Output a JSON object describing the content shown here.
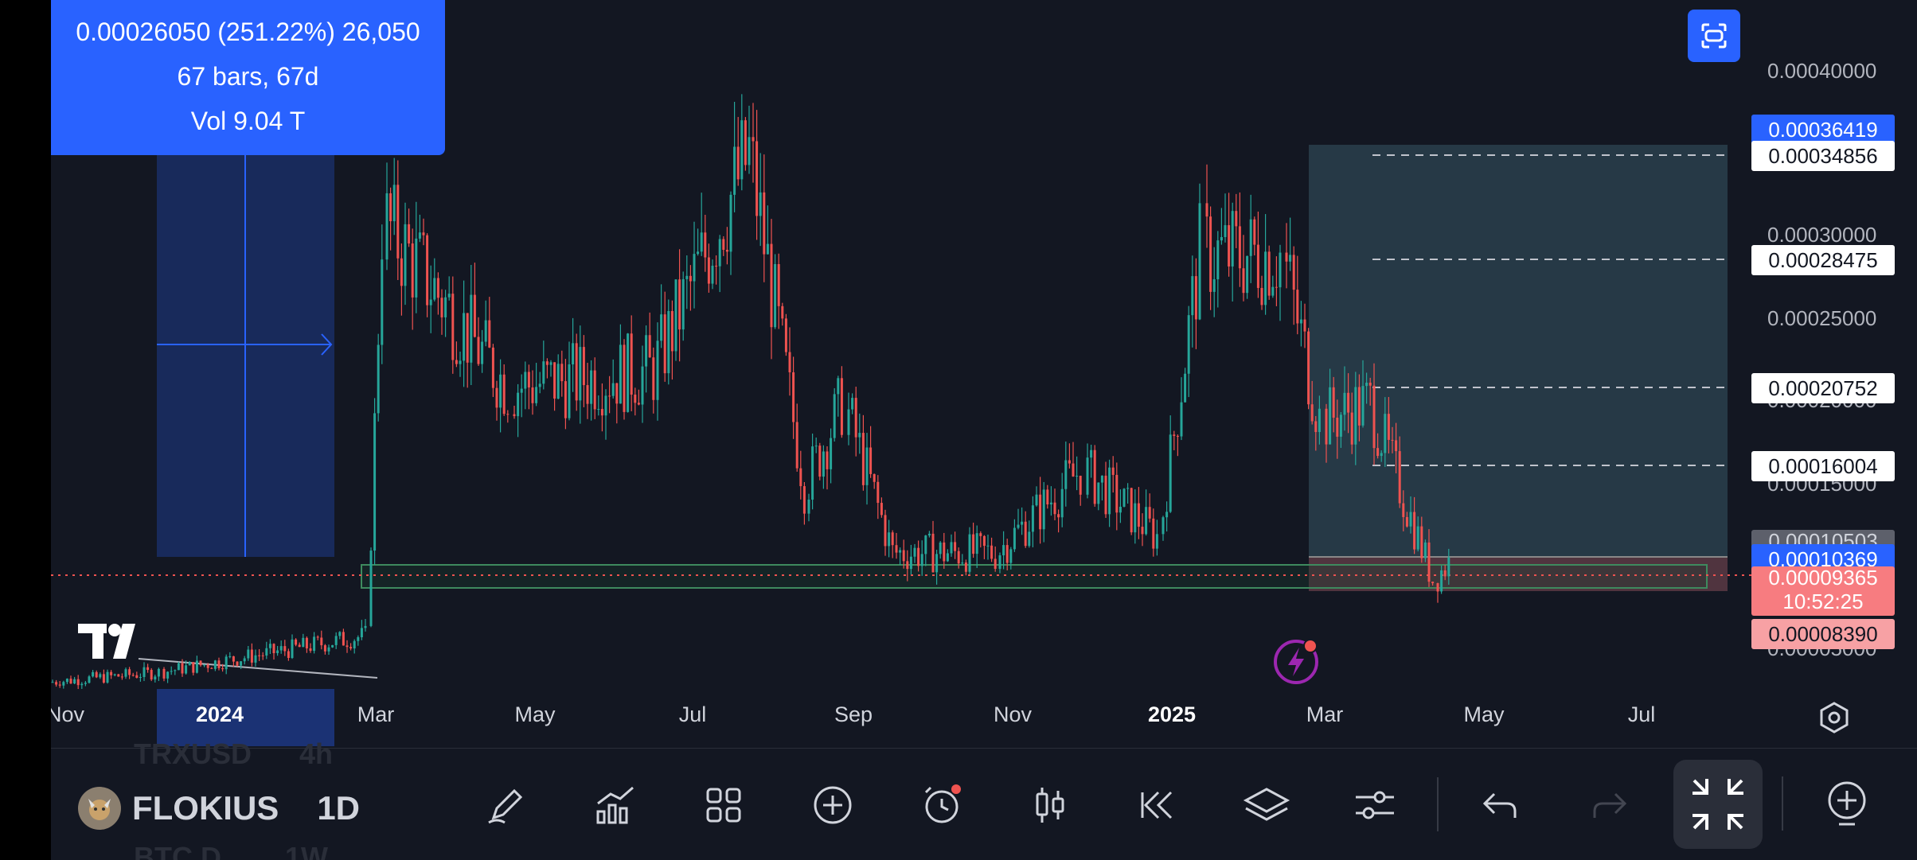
{
  "measure": {
    "line1": "0.00026050 (251.22%) 26,050",
    "line2": "67 bars, 67d",
    "line3": "Vol 9.04 T"
  },
  "y_axis": {
    "ticks": [
      "0.00040000",
      "0.00030000",
      "0.00025000",
      "0.00020000",
      "0.00015000",
      "0.00010503",
      "0.00005000"
    ],
    "labels": {
      "top_blue": "0.00036419",
      "l1": "0.00034856",
      "l2": "0.00028475",
      "l3": "0.00020752",
      "l4": "0.00016004",
      "current": "0.00010369",
      "red1": "0.00009365",
      "countdown": "10:52:25",
      "red2": "0.00008390"
    }
  },
  "x_axis": {
    "ticks": [
      "Nov",
      "2024",
      "Mar",
      "May",
      "Jul",
      "Sep",
      "Nov",
      "2025",
      "Mar",
      "May",
      "Jul"
    ]
  },
  "symbol": {
    "name": "FLOKIUS",
    "interval": "1D",
    "ghost_above_name": "TRXUSD",
    "ghost_above_interval": "4h",
    "ghost_below_name": "BTC.D",
    "ghost_below_interval": "1W"
  },
  "colors": {
    "accent": "#2962ff",
    "up": "#26a69a",
    "down": "#ef5350",
    "bg": "#131722"
  },
  "toolbar": {
    "icons": [
      "pencil-icon",
      "indicators-icon",
      "grid-icon",
      "plus-circle-icon",
      "alarm-clock-icon",
      "candles-icon",
      "replay-icon",
      "layers-icon",
      "settings-sliders-icon",
      "undo-icon",
      "redo-icon",
      "exit-fullscreen-icon",
      "add-chart-icon"
    ]
  },
  "chart_data": {
    "type": "candlestick",
    "symbol": "FLOKIUS",
    "interval": "1D",
    "x": [
      "Nov",
      "2024",
      "Mar",
      "May",
      "Jul",
      "Sep",
      "Nov",
      "2025",
      "Mar",
      "May",
      "Jul"
    ],
    "ylim": [
      5e-05,
      0.0004
    ],
    "price_path": [
      {
        "x": "Nov",
        "y": 3.2e-05
      },
      {
        "x": "2024",
        "y": 3.8e-05
      },
      {
        "x": "Mar",
        "y": 6e-05
      },
      {
        "x": "Mar",
        "y": 0.00031
      },
      {
        "x": "Apr",
        "y": 0.00021
      },
      {
        "x": "May",
        "y": 0.00022
      },
      {
        "x": "Jun",
        "y": 0.00035
      },
      {
        "x": "Jul",
        "y": 0.00015
      },
      {
        "x": "Jul",
        "y": 0.0002
      },
      {
        "x": "Aug",
        "y": 0.00011
      },
      {
        "x": "Sep",
        "y": 0.00011
      },
      {
        "x": "Oct",
        "y": 0.00016
      },
      {
        "x": "Nov",
        "y": 0.00012
      },
      {
        "x": "Nov",
        "y": 0.00029
      },
      {
        "x": "Dec",
        "y": 0.00029
      },
      {
        "x": "2025",
        "y": 0.00019
      },
      {
        "x": "2025",
        "y": 0.0002
      },
      {
        "x": "Feb",
        "y": 9.4e-05
      },
      {
        "x": "Feb",
        "y": 0.000104
      }
    ],
    "horizontal_levels": [
      0.00034856,
      0.00028475,
      0.00020752,
      0.00016004
    ],
    "current_price": 0.00010369
  }
}
